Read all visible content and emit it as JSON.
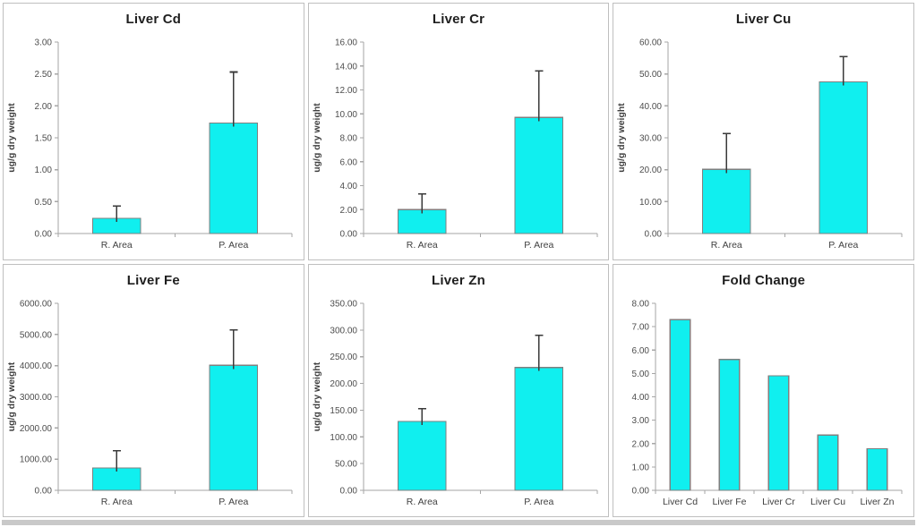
{
  "figure": {
    "background": "#FFFFFF",
    "panel_border_color": "#BFBFBF",
    "bottom_shadow_color": "#C9C9C9"
  },
  "style": {
    "bar_fill": "#10EFEF",
    "bar_stroke": "#7F7F7F",
    "error_bar_color": "#3A3A3A",
    "axis_color": "#A6A6A6",
    "tick_label_color": "#4D4D4D",
    "category_label_color": "#404040",
    "ylabel_color": "#3F3F3F",
    "title_color": "#1F1F1F"
  },
  "chart_data": [
    {
      "type": "bar",
      "title": "Liver Cd",
      "ylabel": "ug/g dry weight",
      "xlabel": "",
      "ylim": [
        0,
        3.0
      ],
      "ytick_step": 0.5,
      "tick_decimals": 2,
      "grid": false,
      "legend": "none",
      "categories": [
        "R. Area",
        "P. Area"
      ],
      "values": [
        0.24,
        1.73
      ],
      "errors_up": [
        0.19,
        0.8
      ]
    },
    {
      "type": "bar",
      "title": "Liver Cr",
      "ylabel": "ug/g dry weight",
      "xlabel": "",
      "ylim": [
        0,
        16.0
      ],
      "ytick_step": 2.0,
      "tick_decimals": 2,
      "grid": false,
      "legend": "none",
      "categories": [
        "R. Area",
        "P. Area"
      ],
      "values": [
        2.0,
        9.7
      ],
      "errors_up": [
        1.3,
        3.9
      ]
    },
    {
      "type": "bar",
      "title": "Liver Cu",
      "ylabel": "ug/g dry weight",
      "xlabel": "",
      "ylim": [
        0,
        60.0
      ],
      "ytick_step": 10.0,
      "tick_decimals": 2,
      "grid": false,
      "legend": "none",
      "categories": [
        "R. Area",
        "P. Area"
      ],
      "values": [
        20.1,
        47.5
      ],
      "errors_up": [
        11.2,
        8.0
      ]
    },
    {
      "type": "bar",
      "title": "Liver Fe",
      "ylabel": "ug/g dry weight",
      "xlabel": "",
      "ylim": [
        0,
        6000.0
      ],
      "ytick_step": 1000.0,
      "tick_decimals": 2,
      "grid": false,
      "legend": "none",
      "categories": [
        "R. Area",
        "P. Area"
      ],
      "values": [
        715,
        4010
      ],
      "errors_up": [
        550,
        1140
      ]
    },
    {
      "type": "bar",
      "title": "Liver Zn",
      "ylabel": "ug/g dry weight",
      "xlabel": "",
      "ylim": [
        0,
        350.0
      ],
      "ytick_step": 50.0,
      "tick_decimals": 2,
      "grid": false,
      "legend": "none",
      "categories": [
        "R. Area",
        "P. Area"
      ],
      "values": [
        129,
        230
      ],
      "errors_up": [
        24,
        60
      ]
    },
    {
      "type": "bar",
      "title": "Fold Change",
      "ylabel": "",
      "xlabel": "",
      "ylim": [
        0,
        8.0
      ],
      "ytick_step": 1.0,
      "tick_decimals": 2,
      "grid": false,
      "legend": "none",
      "categories": [
        "Liver Cd",
        "Liver Fe",
        "Liver Cr",
        "Liver Cu",
        "Liver Zn"
      ],
      "values": [
        7.3,
        5.6,
        4.9,
        2.36,
        1.78
      ],
      "errors_up": []
    }
  ]
}
